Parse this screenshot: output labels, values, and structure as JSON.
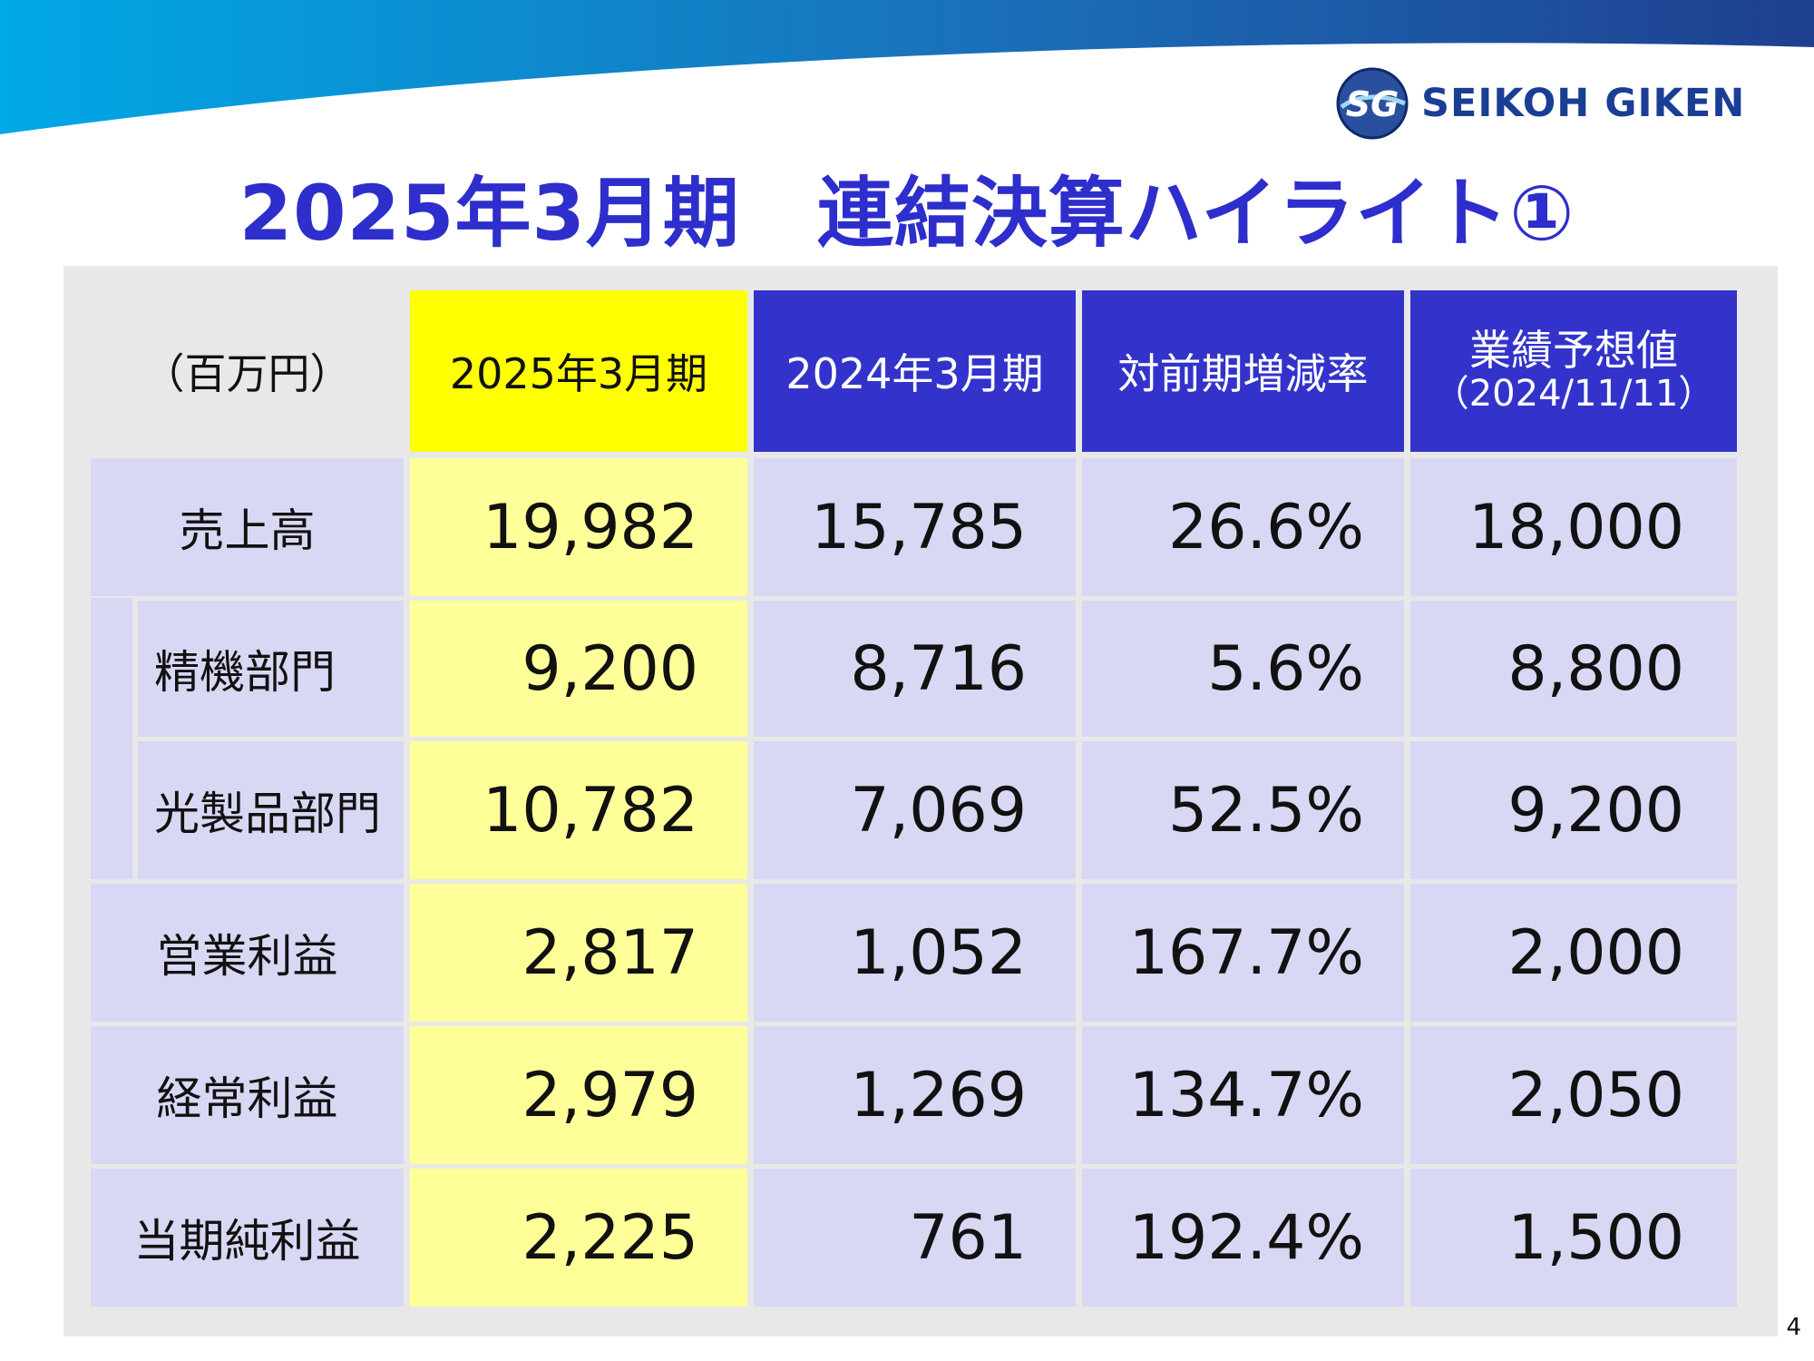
{
  "company": {
    "name": "SEIKOH GIKEN",
    "logo_letters": "SG"
  },
  "title": "2025年3月期　連結決算ハイライト①",
  "table": {
    "unit_label": "（百万円）",
    "headers": {
      "current": "2025年3月期",
      "previous": "2024年3月期",
      "change": "対前期増減率",
      "forecast_line1": "業績予想値",
      "forecast_line2": "（2024/11/11）"
    },
    "rows": [
      {
        "label": "売上高",
        "current": "19,982",
        "previous": "15,785",
        "change": "26.6%",
        "forecast": "18,000"
      },
      {
        "label": "精機部門",
        "current": "9,200",
        "previous": "8,716",
        "change": "5.6%",
        "forecast": "8,800"
      },
      {
        "label": "光製品部門",
        "current": "10,782",
        "previous": "7,069",
        "change": "52.5%",
        "forecast": "9,200"
      },
      {
        "label": "営業利益",
        "current": "2,817",
        "previous": "1,052",
        "change": "167.7%",
        "forecast": "2,000"
      },
      {
        "label": "経常利益",
        "current": "2,979",
        "previous": "1,269",
        "change": "134.7%",
        "forecast": "2,050"
      },
      {
        "label": "当期純利益",
        "current": "2,225",
        "previous": "761",
        "change": "192.4%",
        "forecast": "1,500"
      }
    ]
  },
  "page_number": "4",
  "colors": {
    "title": "#2e2ecc",
    "header_blue": "#3333cc",
    "header_yellow": "#ffff00",
    "cell_yellow": "#ffff99",
    "cell_lavender": "#d8d8f4",
    "panel_gray": "#e8e8e8"
  }
}
